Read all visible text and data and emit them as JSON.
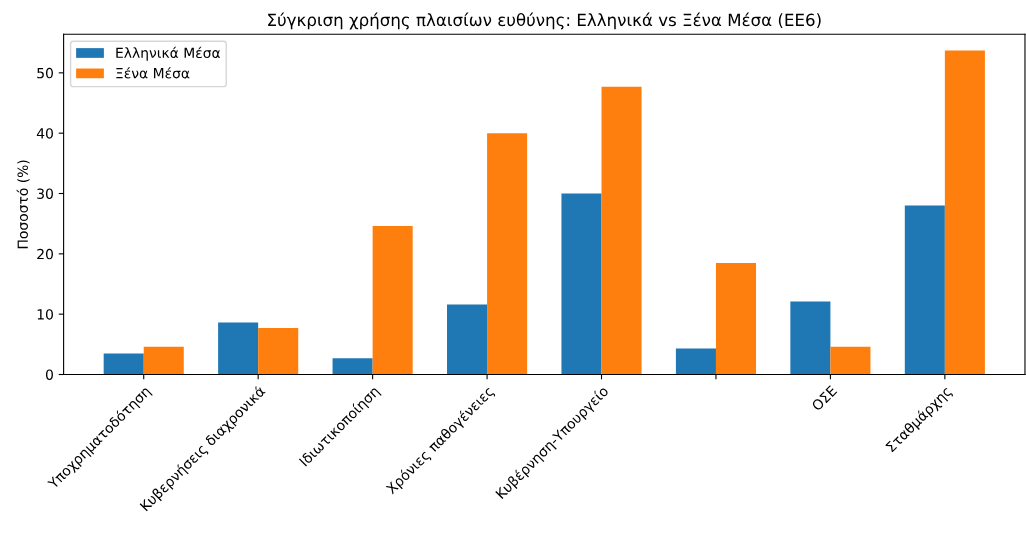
{
  "chart_data": {
    "type": "bar",
    "title": "Σύγκριση χρήσης πλαισίων ευθύνης: Ελληνικά vs Ξένα Μέσα (ΕΕ6)",
    "ylabel": "Ποσοστό (%)",
    "categories": [
      "Υποχρηματοδότηση",
      "Κυβερνήσεις διαχρονικά",
      "Ιδιωτικοποίηση",
      "Χρόνιες παθογένειες",
      "Κυβέρνηση-Υπουργείο",
      null,
      "ΟΣΕ",
      "Σταθμάρχης"
    ],
    "series": [
      {
        "name": "Ελληνικά Μέσα",
        "color": "#1f77b4",
        "values": [
          3.5,
          8.6,
          2.7,
          11.6,
          30.0,
          4.3,
          12.1,
          28.0
        ]
      },
      {
        "name": "Ξένα Μέσα",
        "color": "#ff7f0e",
        "values": [
          4.6,
          7.7,
          24.6,
          40.0,
          47.7,
          18.5,
          4.6,
          53.7
        ]
      }
    ],
    "ylim": [
      0,
      56.4
    ],
    "yticks": [
      0,
      10,
      20,
      30,
      40,
      50
    ],
    "grid": false,
    "legend": "top left"
  }
}
